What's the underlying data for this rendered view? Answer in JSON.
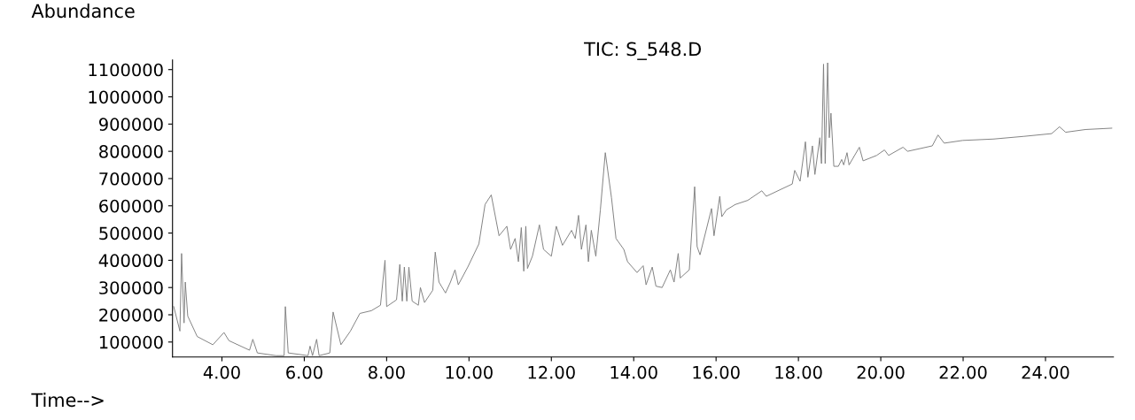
{
  "chart_data": {
    "type": "line",
    "title": "TIC: S_548.D",
    "xlabel": "Time-->",
    "ylabel": "Abundance",
    "xlim": [
      2.8,
      25.65
    ],
    "xticks": [
      {
        "value": 4,
        "label": "4.00"
      },
      {
        "value": 6,
        "label": "6.00"
      },
      {
        "value": 8,
        "label": "8.00"
      },
      {
        "value": 10,
        "label": "10.00"
      },
      {
        "value": 12,
        "label": "12.00"
      },
      {
        "value": 14,
        "label": "14.00"
      },
      {
        "value": 16,
        "label": "16.00"
      },
      {
        "value": 18,
        "label": "18.00"
      },
      {
        "value": 20,
        "label": "20.00"
      },
      {
        "value": 22,
        "label": "22.00"
      },
      {
        "value": 24,
        "label": "24.00"
      }
    ],
    "ylim": [
      45000,
      1135000
    ],
    "yticks": [
      100000,
      200000,
      300000,
      400000,
      500000,
      600000,
      700000,
      800000,
      900000,
      1000000,
      1100000
    ],
    "grid": false,
    "marker": "none",
    "line_style": "solid",
    "series": [
      {
        "color": "#808080",
        "x": [
          2.83,
          2.98,
          3.02,
          3.08,
          3.11,
          3.17,
          3.4,
          3.78,
          4.05,
          4.17,
          4.67,
          4.75,
          4.86,
          5.31,
          5.51,
          5.54,
          5.61,
          6.09,
          6.14,
          6.2,
          6.3,
          6.36,
          6.62,
          6.7,
          6.89,
          7.12,
          7.35,
          7.63,
          7.85,
          7.96,
          8.0,
          8.24,
          8.32,
          8.38,
          8.43,
          8.49,
          8.54,
          8.62,
          8.77,
          8.82,
          8.92,
          9.12,
          9.18,
          9.27,
          9.43,
          9.55,
          9.66,
          9.74,
          9.97,
          10.24,
          10.39,
          10.54,
          10.73,
          10.92,
          11.01,
          11.12,
          11.2,
          11.27,
          11.33,
          11.38,
          11.42,
          11.54,
          11.71,
          11.81,
          12.0,
          12.12,
          12.27,
          12.49,
          12.58,
          12.66,
          12.73,
          12.84,
          12.9,
          12.97,
          13.08,
          13.19,
          13.31,
          13.46,
          13.57,
          13.76,
          13.85,
          14.08,
          14.23,
          14.3,
          14.45,
          14.54,
          14.69,
          14.89,
          14.98,
          15.08,
          15.13,
          15.35,
          15.48,
          15.54,
          15.61,
          15.89,
          15.95,
          16.09,
          16.14,
          16.25,
          16.47,
          16.77,
          17.11,
          17.22,
          17.85,
          17.91,
          18.04,
          18.17,
          18.23,
          18.34,
          18.4,
          18.52,
          18.56,
          18.61,
          18.65,
          18.71,
          18.75,
          18.79,
          18.86,
          18.97,
          19.05,
          19.1,
          19.18,
          19.23,
          19.48,
          19.57,
          19.9,
          20.09,
          20.19,
          20.54,
          20.65,
          21.25,
          21.39,
          21.54,
          21.99,
          22.73,
          23.48,
          24.15,
          24.34,
          24.49,
          24.97,
          25.61
        ],
        "values": [
          230000,
          140000,
          425000,
          170000,
          320000,
          195000,
          120000,
          90000,
          135000,
          105000,
          70000,
          110000,
          60000,
          50000,
          50000,
          230000,
          60000,
          50000,
          85000,
          50000,
          110000,
          50000,
          60000,
          210000,
          90000,
          140000,
          205000,
          215000,
          235000,
          400000,
          230000,
          255000,
          385000,
          250000,
          375000,
          250000,
          375000,
          250000,
          235000,
          300000,
          245000,
          290000,
          430000,
          320000,
          280000,
          320000,
          365000,
          310000,
          375000,
          460000,
          605000,
          640000,
          490000,
          525000,
          440000,
          480000,
          395000,
          520000,
          360000,
          525000,
          370000,
          415000,
          530000,
          440000,
          415000,
          525000,
          455000,
          510000,
          480000,
          565000,
          440000,
          530000,
          395000,
          510000,
          415000,
          585000,
          795000,
          630000,
          480000,
          440000,
          395000,
          355000,
          380000,
          310000,
          375000,
          305000,
          300000,
          365000,
          320000,
          425000,
          335000,
          365000,
          670000,
          450000,
          420000,
          590000,
          490000,
          635000,
          560000,
          585000,
          605000,
          620000,
          655000,
          635000,
          680000,
          730000,
          690000,
          835000,
          705000,
          820000,
          715000,
          850000,
          755000,
          1120000,
          755000,
          1125000,
          850000,
          940000,
          745000,
          745000,
          770000,
          750000,
          795000,
          750000,
          815000,
          765000,
          785000,
          805000,
          785000,
          815000,
          800000,
          820000,
          860000,
          830000,
          840000,
          845000,
          855000,
          865000,
          890000,
          870000,
          880000,
          885000
        ]
      }
    ]
  }
}
